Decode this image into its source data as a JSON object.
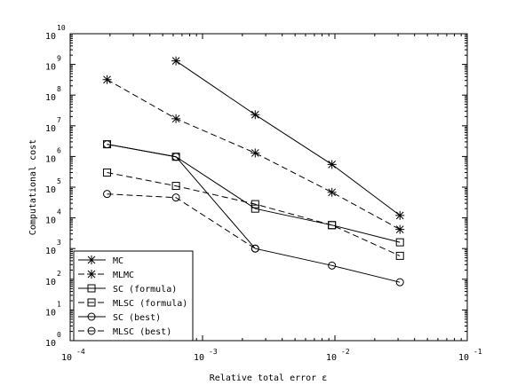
{
  "chart_data": {
    "type": "line",
    "title": "",
    "xlabel": "Relative total error ε",
    "ylabel": "Computational cost",
    "xscale": "log",
    "yscale": "log",
    "xlim": [
      0.0001,
      0.1
    ],
    "ylim": [
      1,
      10000000000
    ],
    "x_ticks": [
      {
        "value": 0.0001,
        "base": "10",
        "exp": "-4"
      },
      {
        "value": 0.001,
        "base": "10",
        "exp": "-3"
      },
      {
        "value": 0.01,
        "base": "10",
        "exp": "-2"
      },
      {
        "value": 0.1,
        "base": "10",
        "exp": "-1"
      }
    ],
    "y_ticks": [
      {
        "value": 1,
        "base": "10",
        "exp": "0"
      },
      {
        "value": 10,
        "base": "10",
        "exp": "1"
      },
      {
        "value": 100,
        "base": "10",
        "exp": "2"
      },
      {
        "value": 1000,
        "base": "10",
        "exp": "3"
      },
      {
        "value": 10000,
        "base": "10",
        "exp": "4"
      },
      {
        "value": 100000,
        "base": "10",
        "exp": "5"
      },
      {
        "value": 1000000,
        "base": "10",
        "exp": "6"
      },
      {
        "value": 10000000,
        "base": "10",
        "exp": "7"
      },
      {
        "value": 100000000,
        "base": "10",
        "exp": "8"
      },
      {
        "value": 1000000000,
        "base": "10",
        "exp": "9"
      },
      {
        "value": 10000000000,
        "base": "10",
        "exp": "10"
      }
    ],
    "grid": false,
    "legend_position": "bottom-left",
    "series": [
      {
        "name": "MC",
        "marker": "star",
        "dash": "solid",
        "x": [
          0.00063,
          0.0025,
          0.0095,
          0.031
        ],
        "y": [
          1300000000,
          23000000,
          550000,
          12000
        ]
      },
      {
        "name": "MLMC",
        "marker": "star",
        "dash": "dashed",
        "x": [
          0.00019,
          0.00063,
          0.0025,
          0.0095,
          0.031
        ],
        "y": [
          320000000,
          17000000,
          1300000,
          68000,
          4200
        ]
      },
      {
        "name": "SC (formula)",
        "marker": "square",
        "dash": "solid",
        "x": [
          0.00019,
          0.00063,
          0.0025,
          0.0095,
          0.031
        ],
        "y": [
          2500000,
          980000,
          20000,
          5800,
          1600
        ]
      },
      {
        "name": "MLSC (formula)",
        "marker": "square",
        "dash": "dashed",
        "x": [
          0.00019,
          0.00063,
          0.0025,
          0.0095,
          0.031
        ],
        "y": [
          300000,
          110000,
          28000,
          5800,
          580
        ]
      },
      {
        "name": "SC (best)",
        "marker": "circle",
        "dash": "solid",
        "x": [
          0.00019,
          0.00063,
          0.0025,
          0.0095,
          0.031
        ],
        "y": [
          2500000,
          980000,
          1000,
          280,
          80
        ]
      },
      {
        "name": "MLSC (best)",
        "marker": "circle",
        "dash": "dashed",
        "x": [
          0.00019,
          0.00063,
          0.0025
        ],
        "y": [
          60000,
          46000,
          1000
        ]
      }
    ]
  }
}
